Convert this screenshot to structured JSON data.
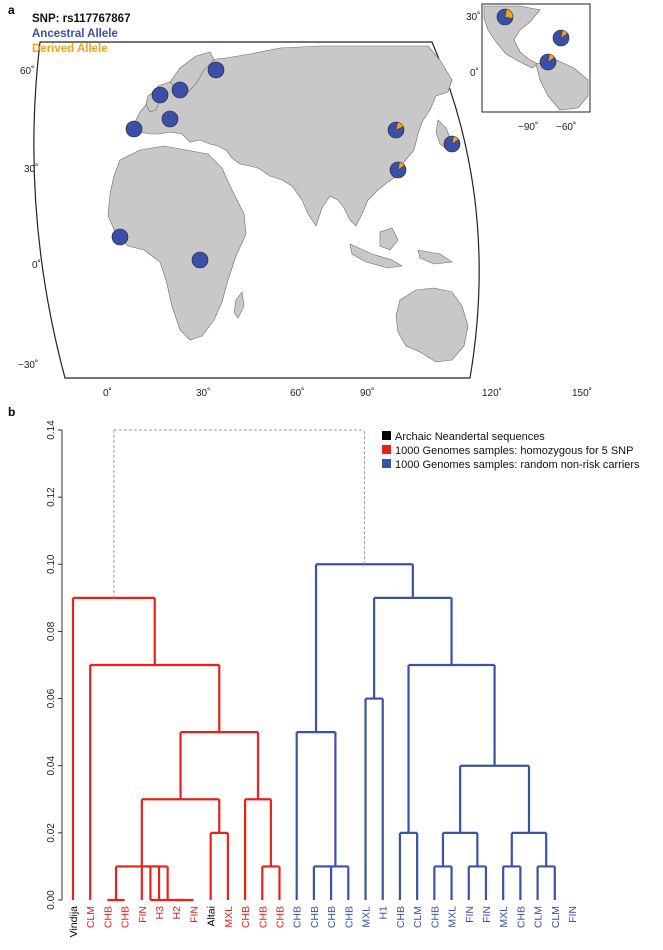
{
  "panel_a": {
    "letter": "a",
    "snp_label": "SNP: rs117767867",
    "ancestral_label": "Ancestral Allele",
    "derived_label": "Derived Allele",
    "colors": {
      "ancestral": "#3b4fa8",
      "derived": "#f5a21a",
      "land": "#c8c8c8",
      "coast": "#6b6b6b"
    },
    "lat_ticks": [
      "60˚",
      "30˚",
      "0˚",
      "−30˚"
    ],
    "lon_ticks": [
      "0˚",
      "30˚",
      "60˚",
      "90˚",
      "120˚",
      "150˚"
    ],
    "inset_lat_ticks": [
      "30˚",
      "0˚"
    ],
    "inset_lon_ticks": [
      "−90˚",
      "−60˚"
    ],
    "pies": [
      {
        "name": "pie-scotland",
        "derived": 0.0
      },
      {
        "name": "pie-finland",
        "derived": 0.0
      },
      {
        "name": "pie-sweden",
        "derived": 0.0
      },
      {
        "name": "pie-britain",
        "derived": 0.0
      },
      {
        "name": "pie-iberia",
        "derived": 0.0
      },
      {
        "name": "pie-italy",
        "derived": 0.0
      },
      {
        "name": "pie-beijing",
        "derived": 0.15
      },
      {
        "name": "pie-japan",
        "derived": 0.12
      },
      {
        "name": "pie-south-china",
        "derived": 0.12
      },
      {
        "name": "pie-west-africa",
        "derived": 0.0
      },
      {
        "name": "pie-east-africa",
        "derived": 0.0
      },
      {
        "name": "pie-mexico",
        "derived": 0.25
      },
      {
        "name": "pie-caribbean",
        "derived": 0.12
      },
      {
        "name": "pie-colombia",
        "derived": 0.12
      }
    ]
  },
  "panel_b": {
    "letter": "b",
    "y_ticks": [
      "0.00",
      "0.02",
      "0.04",
      "0.06",
      "0.08",
      "0.10",
      "0.12",
      "0.14"
    ],
    "ylim": [
      0,
      0.14
    ],
    "legend": [
      {
        "label": "Archaic Neandertal sequences",
        "color": "#000000"
      },
      {
        "label": "1000 Genomes samples: homozygous for 5 SNP",
        "color": "#e8211c"
      },
      {
        "label": "1000 Genomes samples: random non-risk carriers",
        "color": "#3a53a4"
      }
    ],
    "colors": {
      "archaic": "#000000",
      "risk": "#e8211c",
      "nonrisk": "#3a53a4",
      "root": "#9a9a9a"
    },
    "leaves": [
      {
        "label": "Vindija",
        "group": "archaic"
      },
      {
        "label": "CLM",
        "group": "risk"
      },
      {
        "label": "CHB",
        "group": "risk"
      },
      {
        "label": "CHB",
        "group": "risk"
      },
      {
        "label": "FIN",
        "group": "risk"
      },
      {
        "label": "H3",
        "group": "risk"
      },
      {
        "label": "H2",
        "group": "risk"
      },
      {
        "label": "FIN",
        "group": "risk"
      },
      {
        "label": "Altai",
        "group": "archaic"
      },
      {
        "label": "MXL",
        "group": "risk"
      },
      {
        "label": "CHB",
        "group": "risk"
      },
      {
        "label": "CHB",
        "group": "risk"
      },
      {
        "label": "CHB",
        "group": "risk"
      },
      {
        "label": "CHB",
        "group": "nonrisk"
      },
      {
        "label": "CHB",
        "group": "nonrisk"
      },
      {
        "label": "CHB",
        "group": "nonrisk"
      },
      {
        "label": "CHB",
        "group": "nonrisk"
      },
      {
        "label": "MXL",
        "group": "nonrisk"
      },
      {
        "label": "H1",
        "group": "nonrisk"
      },
      {
        "label": "CHB",
        "group": "nonrisk"
      },
      {
        "label": "CLM",
        "group": "nonrisk"
      },
      {
        "label": "CHB",
        "group": "nonrisk"
      },
      {
        "label": "MXL",
        "group": "nonrisk"
      },
      {
        "label": "FIN",
        "group": "nonrisk"
      },
      {
        "label": "FIN",
        "group": "nonrisk"
      },
      {
        "label": "MXL",
        "group": "nonrisk"
      },
      {
        "label": "CHB",
        "group": "nonrisk"
      },
      {
        "label": "CLM",
        "group": "nonrisk"
      },
      {
        "label": "CLM",
        "group": "nonrisk"
      },
      {
        "label": "FIN",
        "group": "nonrisk"
      }
    ],
    "merges": [
      {
        "a": "L4",
        "b": "L5",
        "h": 0.01,
        "id": "n1"
      },
      {
        "a": "L6",
        "b": "L7",
        "h": 0.0,
        "id": "n2"
      },
      {
        "a": "n1",
        "b": "n2",
        "h": 0.0,
        "id": "n3"
      },
      {
        "a": "L2",
        "b": "L3",
        "h": 0.0,
        "id": "n4"
      },
      {
        "a": "n4",
        "b": "n3",
        "h": 0.01,
        "id": "n5"
      },
      {
        "a": "L8",
        "b": "L9",
        "h": 0.02,
        "id": "n6"
      },
      {
        "a": "n5",
        "b": "n6",
        "h": 0.03,
        "id": "n7"
      },
      {
        "a": "L11",
        "b": "L12",
        "h": 0.01,
        "id": "n8"
      },
      {
        "a": "L10",
        "b": "n8",
        "h": 0.03,
        "id": "n9"
      },
      {
        "a": "n7",
        "b": "n9",
        "h": 0.05,
        "id": "n10"
      },
      {
        "a": "L1",
        "b": "n10",
        "h": 0.07,
        "id": "n11"
      },
      {
        "a": "L0",
        "b": "n11",
        "h": 0.09,
        "id": "n12"
      },
      {
        "a": "L14",
        "b": "L15",
        "h": 0.01,
        "id": "n13"
      },
      {
        "a": "L16",
        "b": "n13",
        "h": 0.01,
        "id": "n14"
      },
      {
        "a": "L13",
        "b": "n14",
        "h": 0.05,
        "id": "n15"
      },
      {
        "a": "L17",
        "b": "L18",
        "h": 0.06,
        "id": "n16"
      },
      {
        "a": "L19",
        "b": "L20",
        "h": 0.02,
        "id": "n17"
      },
      {
        "a": "L21",
        "b": "L22",
        "h": 0.01,
        "id": "n18"
      },
      {
        "a": "L23",
        "b": "L24",
        "h": 0.01,
        "id": "n19"
      },
      {
        "a": "n18",
        "b": "n19",
        "h": 0.02,
        "id": "n20"
      },
      {
        "a": "L25",
        "b": "L26",
        "h": 0.01,
        "id": "n21"
      },
      {
        "a": "L27",
        "b": "L28",
        "h": 0.01,
        "id": "n22"
      },
      {
        "a": "n21",
        "b": "n22",
        "h": 0.02,
        "id": "n23"
      },
      {
        "a": "n20",
        "b": "n23",
        "h": 0.04,
        "id": "n24"
      },
      {
        "a": "n17",
        "b": "n24",
        "h": 0.07,
        "id": "n25"
      },
      {
        "a": "n16",
        "b": "n25",
        "h": 0.09,
        "id": "n26"
      },
      {
        "a": "n15",
        "b": "n26",
        "h": 0.1,
        "id": "n27"
      }
    ],
    "root_join": {
      "a": "n12",
      "b": "n27",
      "h": 0.14
    }
  }
}
